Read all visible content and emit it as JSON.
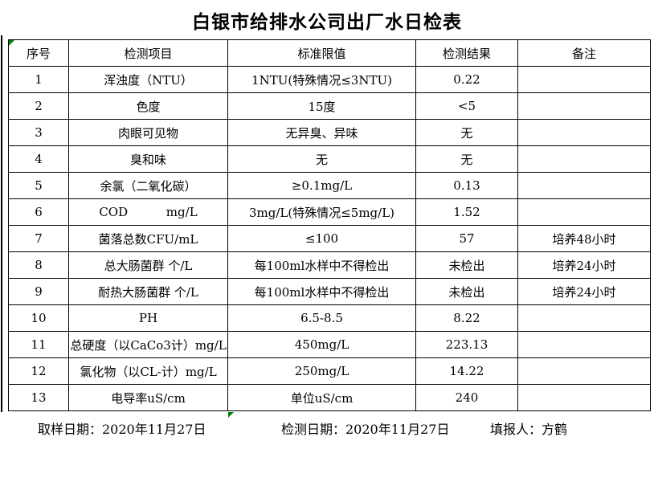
{
  "title": "白银市给排水公司出厂水日检表",
  "table": {
    "headers": [
      "序号",
      "检测项目",
      "标准限值",
      "检测结果",
      "备注"
    ],
    "rows": [
      [
        "1",
        "浑浊度（NTU）",
        "1NTU(特殊情况≤3NTU)",
        "0.22",
        ""
      ],
      [
        "2",
        "色度",
        "15度",
        "<5",
        ""
      ],
      [
        "3",
        "肉眼可见物",
        "无异臭、异味",
        "无",
        ""
      ],
      [
        "4",
        "臭和味",
        "无",
        "无",
        ""
      ],
      [
        "5",
        "余氯（二氧化碳）",
        "≥0.1mg/L",
        "0.13",
        ""
      ],
      [
        "6",
        "COD          mg/L",
        "3mg/L(特殊情况≤5mg/L)",
        "1.52",
        ""
      ],
      [
        "7",
        "菌落总数CFU/mL",
        "≤100",
        "57",
        "培养48小时"
      ],
      [
        "8",
        "总大肠菌群 个/L",
        "每100ml水样中不得检出",
        "未检出",
        "培养24小时"
      ],
      [
        "9",
        "耐热大肠菌群 个/L",
        "每100ml水样中不得检出",
        "未检出",
        "培养24小时"
      ],
      [
        "10",
        "PH",
        "6.5-8.5",
        "8.22",
        ""
      ],
      [
        "11",
        "总硬度（以CaCo3计）mg/L",
        "450mg/L",
        "223.13",
        ""
      ],
      [
        "12",
        "氯化物（以CL-计）mg/L",
        "250mg/L",
        "14.22",
        ""
      ],
      [
        "13",
        "电导率uS/cm",
        "单位uS/cm",
        "240",
        ""
      ]
    ]
  },
  "footer": {
    "sampling_date": "取样日期：2020年11月27日",
    "testing_date": "检测日期：2020年11月27日",
    "reporter": "填报人：方鹤"
  },
  "colors": {
    "indicator_green": "#008000",
    "border": "#000000",
    "background": "#ffffff"
  },
  "icons": {
    "cell_indicator": "green-corner-triangle"
  }
}
